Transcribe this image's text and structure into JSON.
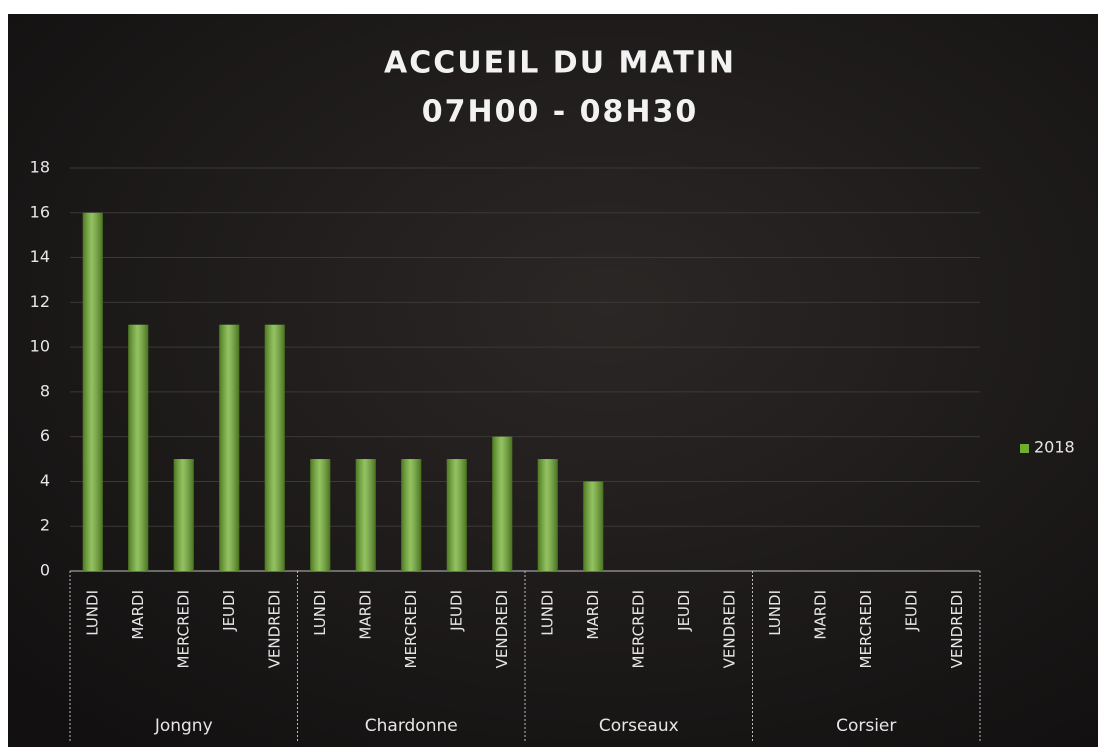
{
  "chart_data": {
    "type": "bar",
    "title": "ACCUEIL DU MATIN",
    "subtitle": "07H00 - 08H30",
    "groups": [
      {
        "name": "Jongny",
        "categories": [
          "LUNDI",
          "MARDI",
          "MERCREDI",
          "JEUDI",
          "VENDREDI"
        ]
      },
      {
        "name": "Chardonne",
        "categories": [
          "LUNDI",
          "MARDI",
          "MERCREDI",
          "JEUDI",
          "VENDREDI"
        ]
      },
      {
        "name": "Corseaux",
        "categories": [
          "LUNDI",
          "MARDI",
          "MERCREDI",
          "JEUDI",
          "VENDREDI"
        ]
      },
      {
        "name": "Corsier",
        "categories": [
          "LUNDI",
          "MARDI",
          "MERCREDI",
          "JEUDI",
          "VENDREDI"
        ]
      }
    ],
    "series": [
      {
        "name": "2018",
        "color": "#6fae2e",
        "values": [
          16,
          11,
          5,
          11,
          11,
          5,
          5,
          5,
          5,
          6,
          5,
          4,
          null,
          null,
          null,
          null,
          null,
          null,
          null,
          null
        ]
      }
    ],
    "ylim": [
      0,
      18
    ],
    "yticks": [
      0,
      2,
      4,
      6,
      8,
      10,
      12,
      14,
      16,
      18
    ],
    "grid": true,
    "legend": "right"
  }
}
